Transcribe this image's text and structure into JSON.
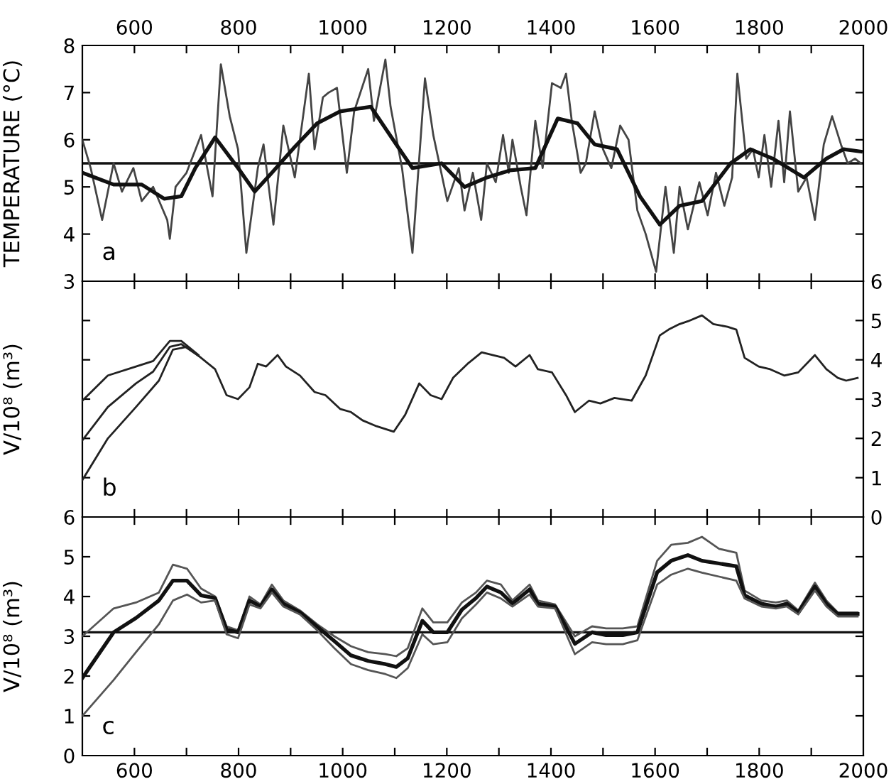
{
  "chart_data": [
    {
      "type": "line",
      "ylabel": "TEMPERATURE (°C)",
      "annotations": [
        "a"
      ],
      "grid": false,
      "legend": false,
      "line_style": "solid",
      "marker": "none",
      "xlim": [
        500,
        2000
      ],
      "xticks": [
        {
          "value": 500,
          "label": null
        },
        600,
        {
          "value": 700,
          "label": null
        },
        800,
        {
          "value": 900,
          "label": null
        },
        1000,
        {
          "value": 1100,
          "label": null
        },
        1200,
        {
          "value": 1300,
          "label": null
        },
        1400,
        {
          "value": 1500,
          "label": null
        },
        1600,
        {
          "value": 1700,
          "label": null
        },
        1800,
        {
          "value": 1900,
          "label": null
        },
        2000
      ],
      "ylim": [
        3,
        8
      ],
      "yticks": [
        3,
        4,
        5,
        6,
        7,
        8
      ],
      "ref_lines": [
        {
          "axis": "y",
          "value": 5.5,
          "label": null,
          "color": "#111111"
        }
      ],
      "series": [
        {
          "color": "#444444",
          "x": [
            500,
            516,
            538,
            560,
            576,
            598,
            614,
            636,
            663,
            668,
            679,
            700,
            728,
            750,
            766,
            783,
            799,
            815,
            837,
            848,
            867,
            886,
            908,
            935,
            946,
            962,
            973,
            989,
            1008,
            1022,
            1049,
            1060,
            1082,
            1092,
            1114,
            1134,
            1158,
            1174,
            1201,
            1223,
            1234,
            1250,
            1266,
            1277,
            1294,
            1308,
            1319,
            1326,
            1342,
            1353,
            1370,
            1384,
            1402,
            1419,
            1429,
            1440,
            1457,
            1467,
            1484,
            1500,
            1516,
            1533,
            1549,
            1566,
            1582,
            1602,
            1620,
            1636,
            1647,
            1663,
            1685,
            1701,
            1717,
            1733,
            1748,
            1758,
            1775,
            1788,
            1799,
            1810,
            1823,
            1837,
            1848,
            1859,
            1875,
            1891,
            1907,
            1924,
            1940,
            1957,
            1970,
            1984,
            1995
          ],
          "values": [
            6.0,
            5.4,
            4.3,
            5.5,
            4.9,
            5.4,
            4.7,
            5.0,
            4.3,
            3.9,
            5.0,
            5.3,
            6.1,
            4.8,
            7.6,
            6.5,
            5.8,
            3.6,
            5.4,
            5.9,
            4.2,
            6.3,
            5.2,
            7.4,
            5.8,
            6.9,
            7.0,
            7.1,
            5.3,
            6.6,
            7.5,
            6.4,
            7.7,
            6.7,
            5.4,
            3.6,
            7.3,
            6.1,
            4.7,
            5.4,
            4.5,
            5.3,
            4.3,
            5.5,
            5.1,
            6.1,
            5.3,
            6.0,
            5.0,
            4.4,
            6.4,
            5.4,
            7.2,
            7.1,
            7.4,
            6.4,
            5.3,
            5.5,
            6.6,
            5.8,
            5.4,
            6.3,
            6.0,
            4.5,
            4.0,
            3.2,
            5.0,
            3.6,
            5.0,
            4.1,
            5.1,
            4.4,
            5.3,
            4.6,
            5.2,
            7.4,
            5.6,
            5.8,
            5.2,
            6.1,
            5.0,
            6.4,
            5.1,
            6.6,
            4.9,
            5.2,
            4.3,
            5.9,
            6.5,
            5.9,
            5.5,
            5.6,
            5.5
          ]
        },
        {
          "color": "#111111",
          "x": [
            500,
            560,
            614,
            657,
            690,
            717,
            755,
            799,
            831,
            864,
            908,
            951,
            995,
            1054,
            1103,
            1134,
            1190,
            1234,
            1277,
            1321,
            1370,
            1413,
            1451,
            1484,
            1527,
            1571,
            1609,
            1647,
            1690,
            1745,
            1783,
            1826,
            1886,
            1929,
            1962,
            1995
          ],
          "values": [
            5.3,
            5.05,
            5.05,
            4.75,
            4.8,
            5.4,
            6.05,
            5.4,
            4.9,
            5.3,
            5.85,
            6.35,
            6.6,
            6.7,
            5.9,
            5.4,
            5.5,
            5.0,
            5.2,
            5.35,
            5.4,
            6.45,
            6.35,
            5.9,
            5.8,
            4.8,
            4.2,
            4.6,
            4.7,
            5.5,
            5.8,
            5.6,
            5.2,
            5.6,
            5.8,
            5.75
          ]
        }
      ]
    },
    {
      "type": "line",
      "ylabel": "V/10⁸ (m³)",
      "annotations": [
        "b"
      ],
      "grid": false,
      "legend": false,
      "line_style": "solid",
      "marker": "none",
      "xlim": [
        500,
        2000
      ],
      "xticks": [
        500,
        600,
        700,
        800,
        900,
        1000,
        1100,
        1200,
        1300,
        1400,
        1500,
        1600,
        1700,
        1800,
        1900,
        2000
      ],
      "tick_labels": "y",
      "y2lim": [
        0,
        6
      ],
      "y2ticks": [
        0,
        1,
        2,
        3,
        4,
        5,
        6
      ],
      "series": [
        {
          "color": "#222222",
          "axis": "y2",
          "x": [
            500,
            549,
            603,
            636,
            668,
            690,
            723
          ],
          "values": [
            2.96,
            3.6,
            3.83,
            3.97,
            4.48,
            4.48,
            4.12
          ]
        },
        {
          "color": "#222222",
          "axis": "y2",
          "x": [
            500,
            549,
            603,
            636,
            668,
            690,
            723
          ],
          "values": [
            1.95,
            2.8,
            3.4,
            3.7,
            4.33,
            4.4,
            4.1
          ]
        },
        {
          "color": "#222222",
          "axis": "y2",
          "x": [
            500,
            549,
            603,
            647,
            674,
            701,
            728,
            755,
            777,
            799,
            821,
            837,
            853,
            875,
            891,
            918,
            946,
            967,
            995,
            1016,
            1038,
            1065,
            1082,
            1098,
            1120,
            1147,
            1169,
            1190,
            1212,
            1240,
            1267,
            1289,
            1310,
            1332,
            1359,
            1375,
            1402,
            1429,
            1446,
            1473,
            1495,
            1522,
            1555,
            1582,
            1609,
            1626,
            1647,
            1663,
            1690,
            1712,
            1739,
            1756,
            1772,
            1799,
            1821,
            1848,
            1875,
            1907,
            1929,
            1951,
            1967,
            1989
          ],
          "values": [
            0.94,
            2.0,
            2.8,
            3.47,
            4.26,
            4.33,
            4.05,
            3.76,
            3.1,
            3.0,
            3.3,
            3.9,
            3.83,
            4.12,
            3.83,
            3.6,
            3.18,
            3.1,
            2.75,
            2.67,
            2.46,
            2.31,
            2.24,
            2.17,
            2.6,
            3.4,
            3.1,
            3.0,
            3.54,
            3.9,
            4.19,
            4.12,
            4.05,
            3.83,
            4.12,
            3.76,
            3.68,
            3.1,
            2.67,
            2.96,
            2.89,
            3.03,
            2.96,
            3.6,
            4.62,
            4.77,
            4.91,
            4.98,
            5.13,
            4.91,
            4.84,
            4.77,
            4.05,
            3.83,
            3.76,
            3.6,
            3.68,
            4.12,
            3.76,
            3.54,
            3.47,
            3.54
          ]
        }
      ]
    },
    {
      "type": "line",
      "ylabel": "V/10⁸ (m³)",
      "annotations": [
        "c"
      ],
      "grid": false,
      "legend": false,
      "line_style": "solid",
      "marker": "none",
      "xlim": [
        500,
        2000
      ],
      "xticks": [
        {
          "value": 500,
          "label": null
        },
        600,
        {
          "value": 700,
          "label": null
        },
        800,
        {
          "value": 900,
          "label": null
        },
        1000,
        {
          "value": 1100,
          "label": null
        },
        1200,
        {
          "value": 1300,
          "label": null
        },
        1400,
        {
          "value": 1500,
          "label": null
        },
        1600,
        {
          "value": 1700,
          "label": null
        },
        1800,
        {
          "value": 1900,
          "label": null
        },
        2000
      ],
      "ylim": [
        0,
        6
      ],
      "yticks": [
        0,
        1,
        2,
        3,
        4,
        5,
        6
      ],
      "ref_lines": [
        {
          "axis": "y",
          "value": 3.1,
          "label": null,
          "color": "#111111"
        }
      ],
      "x": [
        500,
        560,
        603,
        647,
        674,
        701,
        728,
        755,
        777,
        799,
        821,
        842,
        864,
        886,
        918,
        951,
        984,
        1016,
        1049,
        1082,
        1103,
        1125,
        1153,
        1174,
        1201,
        1229,
        1256,
        1277,
        1304,
        1326,
        1359,
        1375,
        1408,
        1446,
        1479,
        1506,
        1538,
        1566,
        1604,
        1631,
        1663,
        1690,
        1723,
        1756,
        1772,
        1804,
        1832,
        1853,
        1875,
        1907,
        1929,
        1951,
        1989
      ],
      "series": [
        {
          "color": "#555555",
          "values": [
            3.0,
            3.7,
            3.85,
            4.1,
            4.8,
            4.7,
            4.2,
            4.0,
            3.25,
            3.15,
            4.0,
            3.8,
            4.3,
            3.9,
            3.65,
            3.3,
            3.0,
            2.75,
            2.6,
            2.55,
            2.5,
            2.7,
            3.7,
            3.35,
            3.35,
            3.85,
            4.1,
            4.4,
            4.3,
            3.9,
            4.3,
            3.9,
            3.8,
            3.0,
            3.25,
            3.2,
            3.2,
            3.25,
            4.9,
            5.3,
            5.35,
            5.5,
            5.2,
            5.1,
            4.15,
            3.9,
            3.85,
            3.9,
            3.65,
            4.35,
            3.9,
            3.6,
            3.6
          ]
        },
        {
          "color": "#111111",
          "values": [
            1.95,
            3.1,
            3.46,
            3.9,
            4.4,
            4.4,
            4.03,
            3.96,
            3.17,
            3.1,
            3.9,
            3.75,
            4.18,
            3.82,
            3.6,
            3.24,
            2.88,
            2.52,
            2.38,
            2.3,
            2.23,
            2.45,
            3.39,
            3.1,
            3.1,
            3.67,
            3.96,
            4.25,
            4.1,
            3.82,
            4.18,
            3.82,
            3.75,
            2.81,
            3.1,
            3.03,
            3.03,
            3.1,
            4.61,
            4.9,
            5.04,
            4.9,
            4.83,
            4.76,
            4.03,
            3.82,
            3.75,
            3.82,
            3.6,
            4.25,
            3.82,
            3.56,
            3.56
          ]
        },
        {
          "color": "#555555",
          "values": [
            1.0,
            1.9,
            2.6,
            3.3,
            3.9,
            4.05,
            3.85,
            3.9,
            3.05,
            2.95,
            3.8,
            3.7,
            4.1,
            3.75,
            3.55,
            3.15,
            2.7,
            2.3,
            2.15,
            2.05,
            1.95,
            2.2,
            3.05,
            2.8,
            2.85,
            3.45,
            3.8,
            4.1,
            3.95,
            3.75,
            4.05,
            3.75,
            3.7,
            2.55,
            2.85,
            2.8,
            2.8,
            2.9,
            4.3,
            4.55,
            4.7,
            4.6,
            4.5,
            4.4,
            3.95,
            3.75,
            3.7,
            3.75,
            3.55,
            4.15,
            3.75,
            3.5,
            3.5
          ]
        }
      ]
    }
  ]
}
